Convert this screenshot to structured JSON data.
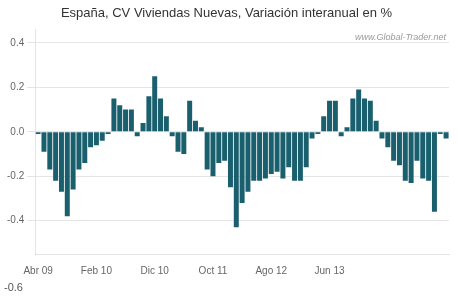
{
  "chart_data": {
    "type": "bar",
    "title": "España, CV Viviendas Nuevas, Variación interanual en %",
    "categories": [
      "Abr 09",
      null,
      null,
      null,
      null,
      null,
      null,
      null,
      null,
      null,
      "Feb 10",
      null,
      null,
      null,
      null,
      null,
      null,
      null,
      null,
      null,
      "Dic 10",
      null,
      null,
      null,
      null,
      null,
      null,
      null,
      null,
      null,
      "Oct 11",
      null,
      null,
      null,
      null,
      null,
      null,
      null,
      null,
      null,
      "Ago 12",
      null,
      null,
      null,
      null,
      null,
      null,
      null,
      null,
      null,
      "Jun 13",
      null,
      null,
      null,
      null,
      null,
      null,
      null,
      null,
      null,
      null,
      null,
      null,
      null,
      null,
      null,
      null,
      null,
      null,
      null,
      null
    ],
    "values": [
      -0.01,
      -0.09,
      -0.17,
      -0.22,
      -0.27,
      -0.38,
      -0.26,
      -0.17,
      -0.14,
      -0.07,
      -0.06,
      -0.04,
      -0.01,
      0.15,
      0.12,
      0.1,
      0.1,
      -0.02,
      0.04,
      0.16,
      0.25,
      0.15,
      0.07,
      -0.02,
      -0.09,
      -0.1,
      0.14,
      0.05,
      0.02,
      -0.17,
      -0.2,
      -0.14,
      -0.13,
      -0.25,
      -0.43,
      -0.32,
      -0.27,
      -0.22,
      -0.22,
      -0.21,
      -0.19,
      -0.18,
      -0.21,
      -0.16,
      -0.22,
      -0.22,
      -0.16,
      -0.03,
      -0.01,
      0.07,
      0.14,
      0.14,
      -0.02,
      0.02,
      0.15,
      0.19,
      0.15,
      0.14,
      0.05,
      -0.03,
      -0.07,
      -0.13,
      -0.15,
      -0.22,
      -0.23,
      -0.13,
      -0.21,
      -0.22,
      -0.36,
      -0.01,
      -0.03
    ],
    "color": "#1a5f6e",
    "ylim": [
      -0.55,
      0.46
    ],
    "yticks": [
      -0.4,
      -0.2,
      {
        "value": 0,
        "label": "0.0"
      },
      0.2,
      0.4
    ],
    "grid": true,
    "annotations": [
      "www.Global-Trader.net",
      "-0.6"
    ]
  }
}
